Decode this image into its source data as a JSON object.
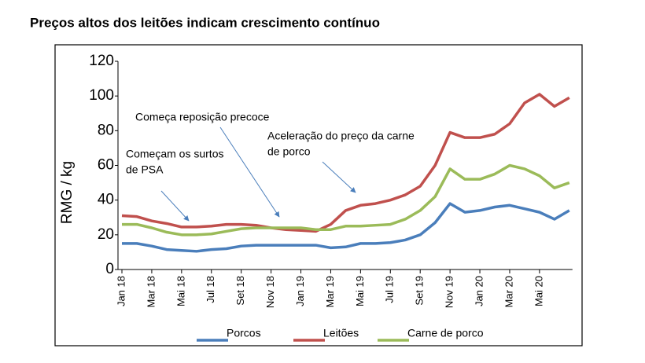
{
  "chart_data": {
    "type": "line",
    "title": "Preços altos dos leitões indicam crescimento contínuo",
    "y_label": "RMG / kg",
    "categories": [
      "Jan 18",
      null,
      "Mar 18",
      null,
      "Mai 18",
      null,
      "Jul 18",
      null,
      "Set 18",
      null,
      "Nov 18",
      null,
      "Jan 19",
      null,
      "Mar 19",
      null,
      "Mai 19",
      null,
      "Jul 19",
      null,
      "Set 19",
      null,
      "Nov 19",
      null,
      "Jan 20",
      null,
      "Mar 20",
      null,
      "Mai 20",
      null,
      null
    ],
    "series": [
      {
        "name": "Porcos",
        "color": "#4a7ebb",
        "values": [
          15,
          15,
          13.5,
          11.5,
          11,
          10.5,
          11.5,
          12,
          13.5,
          14,
          14,
          14,
          14,
          14,
          12.5,
          13,
          15,
          15,
          15.5,
          17,
          20,
          27,
          38,
          33,
          34,
          36,
          37,
          35,
          33,
          29,
          34
        ]
      },
      {
        "name": "Leitões",
        "color": "#c0504d",
        "values": [
          31,
          30.5,
          28,
          26.5,
          24.5,
          24.5,
          25,
          26,
          26,
          25.5,
          24,
          23,
          22.5,
          22,
          26,
          34,
          37,
          38,
          40,
          43,
          48,
          60,
          79,
          76,
          76,
          78,
          84,
          96,
          101,
          94,
          99
        ]
      },
      {
        "name": "Carne de porco",
        "color": "#9bbb59",
        "values": [
          26,
          26,
          24,
          21.5,
          20,
          20,
          20.5,
          22,
          23.5,
          24,
          24,
          24,
          24,
          23,
          23,
          25,
          25,
          25.5,
          26,
          29,
          34,
          42,
          58,
          52,
          52,
          55,
          60,
          58,
          54,
          47,
          50
        ]
      }
    ],
    "ylim": [
      0,
      120
    ],
    "yticks": [
      0,
      20,
      40,
      60,
      80,
      100,
      120
    ],
    "annotations": [
      [
        "Começa reposição precoce"
      ],
      [
        "Começam os surtos",
        "de PSA"
      ],
      [
        "Aceleração do preço da carne",
        "de porco"
      ]
    ]
  }
}
